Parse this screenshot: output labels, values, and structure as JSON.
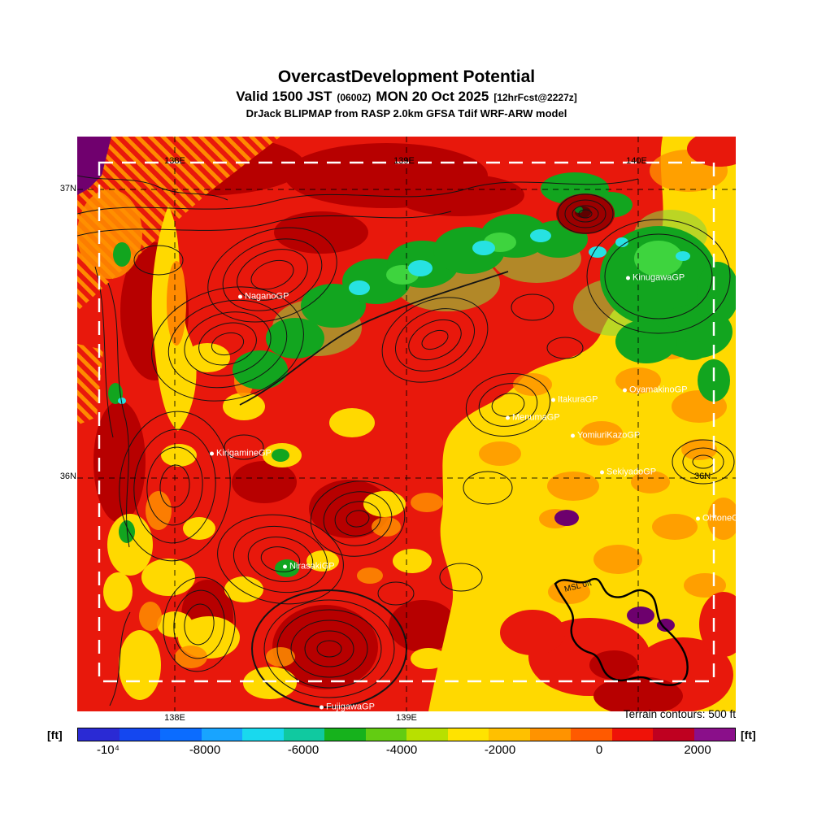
{
  "header": {
    "title": "OvercastDevelopment Potential",
    "valid": {
      "part1": "Valid 1500 JST",
      "zulu": "(0600Z)",
      "part2": "MON 20 Oct 2025",
      "fcst": "[12hrFcst@2227z]"
    },
    "model": "DrJack BLIPMAP from RASP 2.0km GFSA Tdif WRF-ARW model"
  },
  "map": {
    "axes": {
      "lat37_left": "37N",
      "lat36_left": "36N",
      "lat36_right": "36N",
      "lon138_top": "138E",
      "lon139_top": "139E",
      "lon140_top": "140E",
      "lon138_bottom": "138E",
      "lon139_bottom": "139E"
    },
    "annotation": "MSL 0ft",
    "stations": [
      {
        "name": "NaganoGP"
      },
      {
        "name": "KinugawaGP"
      },
      {
        "name": "OyamakinoGP"
      },
      {
        "name": "ItakuraGP"
      },
      {
        "name": "MenumaGP"
      },
      {
        "name": "YomiuriKazoGP"
      },
      {
        "name": "SekiyadoGP"
      },
      {
        "name": "OhtoneGP"
      },
      {
        "name": "KirigamineGP"
      },
      {
        "name": "NirasakiGP"
      },
      {
        "name": "FujigawaGP"
      }
    ]
  },
  "footer": {
    "terrain_note": "Terrain contours: 500 ft",
    "unit_left": "[ft]",
    "unit_right": "[ft]"
  },
  "colorbar": {
    "ticks": [
      "-10⁴",
      "-8000",
      "-6000",
      "-4000",
      "-2000",
      "0",
      "2000"
    ],
    "colors": [
      "#2a2ad4",
      "#1447f0",
      "#0b6cff",
      "#18a4ff",
      "#19d9ee",
      "#10c9a0",
      "#16b21c",
      "#63cc12",
      "#b8e000",
      "#ffe300",
      "#ffc000",
      "#ff9300",
      "#ff5a00",
      "#ef1208",
      "#bf0020",
      "#8a0f8a"
    ]
  }
}
